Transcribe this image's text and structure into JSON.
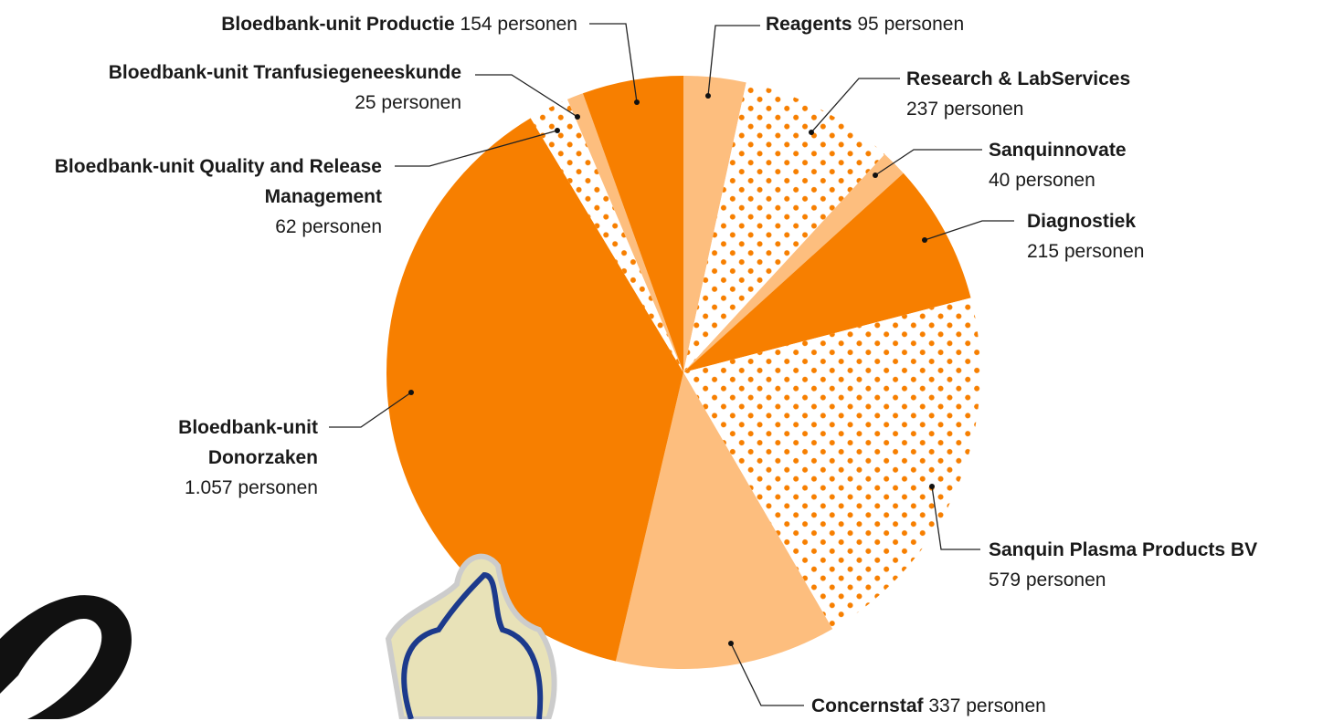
{
  "chart_data": {
    "type": "pie",
    "categories": [
      "Reagents",
      "Research & LabServices",
      "Sanquinnovate",
      "Diagnostiek",
      "Sanquin Plasma Products BV",
      "Concernstaf",
      "Bloedbank-unit Donorzaken",
      "Bloedbank-unit Quality and Release Management",
      "Bloedbank-unit Tranfusiegeneeskunde",
      "Bloedbank-unit Productie"
    ],
    "values": [
      95,
      237,
      40,
      215,
      579,
      337,
      1057,
      62,
      25,
      154
    ],
    "value_labels": [
      "95 personen",
      "237 personen",
      "40 personen",
      "215 personen",
      "579 personen",
      "337 personen",
      "1.057 personen",
      "62 personen",
      "25 personen",
      "154 personen"
    ],
    "colors": [
      "#fdbe7e",
      "#f77f00",
      "#fdbe7e",
      "#f77f00",
      "#f77f00",
      "#fdbe7e",
      "#f77f00",
      "#f77f00",
      "#fdbe7e",
      "#f77f00"
    ],
    "dotted": [
      false,
      true,
      false,
      false,
      true,
      false,
      false,
      true,
      false,
      false
    ]
  }
}
